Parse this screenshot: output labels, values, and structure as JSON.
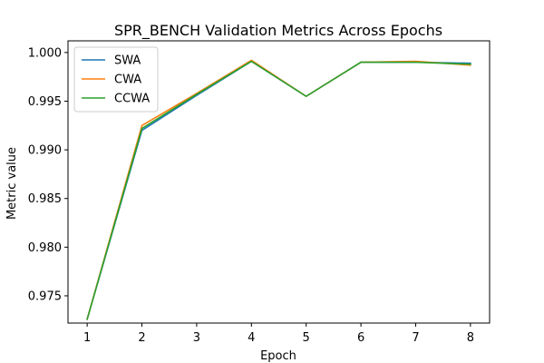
{
  "chart_data": {
    "type": "line",
    "title": "SPR_BENCH Validation Metrics Across Epochs",
    "xlabel": "Epoch",
    "ylabel": "Metric value",
    "x": [
      1,
      2,
      3,
      4,
      5,
      6,
      7,
      8
    ],
    "xticks": [
      1,
      2,
      3,
      4,
      5,
      6,
      7,
      8
    ],
    "yticks": [
      0.975,
      0.98,
      0.985,
      0.99,
      0.995,
      1.0
    ],
    "ytick_labels": [
      "0.975",
      "0.980",
      "0.985",
      "0.990",
      "0.995",
      "1.000"
    ],
    "xlim": [
      0.65,
      8.35
    ],
    "ylim": [
      0.9722,
      1.0012
    ],
    "grid": false,
    "legend_position": "top-left",
    "series": [
      {
        "name": "SWA",
        "color": "#1f77b4",
        "values": [
          0.9726,
          0.992,
          0.9956,
          0.9991,
          0.9955,
          0.999,
          0.999,
          0.9989
        ]
      },
      {
        "name": "CWA",
        "color": "#ff7f0e",
        "values": [
          0.9726,
          0.9925,
          0.9958,
          0.9992,
          0.9955,
          0.999,
          0.9991,
          0.9987
        ]
      },
      {
        "name": "CCWA",
        "color": "#2ca02c",
        "values": [
          0.9726,
          0.9922,
          0.9957,
          0.9991,
          0.9955,
          0.999,
          0.999,
          0.9988
        ]
      }
    ]
  }
}
